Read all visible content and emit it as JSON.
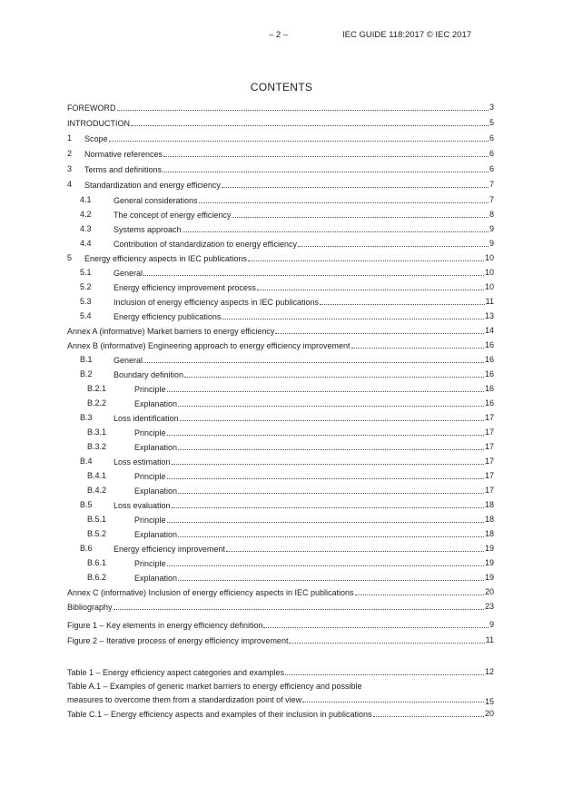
{
  "header": {
    "page_number": "– 2 –",
    "document_id": "IEC GUIDE 118:2017 © IEC 2017"
  },
  "title": "CONTENTS",
  "contents": [
    {
      "num": "",
      "title": "FOREWORD",
      "page": "3"
    },
    {
      "num": "",
      "title": "INTRODUCTION",
      "page": "5"
    },
    {
      "num": "1",
      "title": "Scope",
      "page": "6"
    },
    {
      "num": "2",
      "title": "Normative references",
      "page": "6"
    },
    {
      "num": "3",
      "title": "Terms and definitions",
      "page": "6"
    },
    {
      "num": "4",
      "title": "Standardization and energy efficiency",
      "page": "7"
    },
    {
      "num": "4.1",
      "title": "General considerations",
      "page": "7",
      "level": 1
    },
    {
      "num": "4.2",
      "title": "The concept of energy efficiency",
      "page": "8",
      "level": 1
    },
    {
      "num": "4.3",
      "title": "Systems approach",
      "page": "9",
      "level": 1
    },
    {
      "num": "4.4",
      "title": "Contribution of standardization to energy efficiency",
      "page": "9",
      "level": 1
    },
    {
      "num": "5",
      "title": "Energy efficiency aspects in IEC publications",
      "page": "10"
    },
    {
      "num": "5.1",
      "title": "General",
      "page": "10",
      "level": 1
    },
    {
      "num": "5.2",
      "title": "Energy efficiency improvement process",
      "page": "10",
      "level": 1
    },
    {
      "num": "5.3",
      "title": "Inclusion of energy efficiency aspects in IEC publications",
      "page": "11",
      "level": 1
    },
    {
      "num": "5.4",
      "title": "Energy efficiency publications",
      "page": "13",
      "level": 1
    },
    {
      "num": "",
      "title": "Annex A (informative)  Market barriers to energy efficiency",
      "page": "14"
    },
    {
      "num": "",
      "title": "Annex B (informative)  Engineering approach to energy efficiency improvement",
      "page": "16"
    },
    {
      "num": "B.1",
      "title": "General",
      "page": "16",
      "level": 1
    },
    {
      "num": "B.2",
      "title": "Boundary definition",
      "page": "16",
      "level": 1
    },
    {
      "num": "B.2.1",
      "title": "Principle",
      "page": "16",
      "level": 2
    },
    {
      "num": "B.2.2",
      "title": "Explanation",
      "page": "16",
      "level": 2
    },
    {
      "num": "B.3",
      "title": "Loss identification",
      "page": "17",
      "level": 1
    },
    {
      "num": "B.3.1",
      "title": "Principle",
      "page": "17",
      "level": 2
    },
    {
      "num": "B.3.2",
      "title": "Explanation",
      "page": "17",
      "level": 2
    },
    {
      "num": "B.4",
      "title": "Loss estimation",
      "page": "17",
      "level": 1
    },
    {
      "num": "B.4.1",
      "title": "Principle",
      "page": "17",
      "level": 2
    },
    {
      "num": "B.4.2",
      "title": "Explanation",
      "page": "17",
      "level": 2
    },
    {
      "num": "B.5",
      "title": "Loss evaluation",
      "page": "18",
      "level": 1
    },
    {
      "num": "B.5.1",
      "title": "Principle",
      "page": "18",
      "level": 2
    },
    {
      "num": "B.5.2",
      "title": "Explanation",
      "page": "18",
      "level": 2
    },
    {
      "num": "B.6",
      "title": "Energy efficiency improvement",
      "page": "19",
      "level": 1
    },
    {
      "num": "B.6.1",
      "title": "Principle",
      "page": "19",
      "level": 2
    },
    {
      "num": "B.6.2",
      "title": "Explanation",
      "page": "19",
      "level": 2
    },
    {
      "num": "",
      "title": "Annex C (informative)  Inclusion of energy efficiency aspects in IEC publications",
      "page": "20"
    },
    {
      "num": "",
      "title": "Bibliography",
      "page": "23"
    }
  ],
  "figures": [
    {
      "title": "Figure 1 – Key elements in energy efficiency definition",
      "page": "9"
    },
    {
      "title": "Figure 2 – Iterative process of energy efficiency improvement",
      "page": "11"
    }
  ],
  "tables": [
    {
      "title": "Table 1 – Energy efficiency aspect categories and examples",
      "page": "12"
    },
    {
      "title": "Table A.1 – Examples of generic market barriers to energy efficiency and  possible",
      "title2": "measures to overcome them from a standardization point of view",
      "page": "15"
    },
    {
      "title": "Table C.1 – Energy efficiency aspects and  examples of their inclusion in publications",
      "page": "20"
    }
  ]
}
